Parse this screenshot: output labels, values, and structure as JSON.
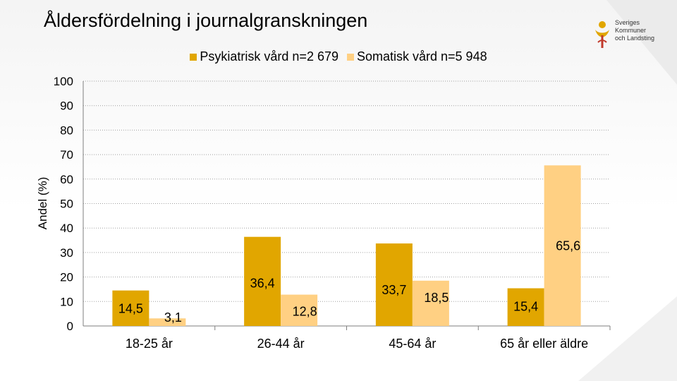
{
  "page": {
    "title": "Åldersfördelning i journalgranskningen",
    "logo_lines": [
      "Sveriges",
      "Kommuner",
      "och Landsting"
    ]
  },
  "colors": {
    "psych": "#e1a600",
    "somatic": "#ffd083",
    "grid": "#a0a0a0",
    "axis": "#7f7f7f"
  },
  "chart_data": {
    "type": "bar",
    "title": "Åldersfördelning i journalgranskningen",
    "xlabel": "",
    "ylabel": "Andel (%)",
    "ylim": [
      0,
      100
    ],
    "yticks": [
      0,
      10,
      20,
      30,
      40,
      50,
      60,
      70,
      80,
      90,
      100
    ],
    "grid": true,
    "legend": "top-center",
    "categories": [
      "18-25 år",
      "26-44 år",
      "45-64 år",
      "65 år eller äldre"
    ],
    "series": [
      {
        "name": "Psykiatrisk vård n=2 679",
        "values": [
          14.5,
          36.4,
          33.7,
          15.4
        ],
        "labels": [
          "14,5",
          "36,4",
          "33,7",
          "15,4"
        ]
      },
      {
        "name": "Somatisk vård n=5 948",
        "values": [
          3.1,
          12.8,
          18.5,
          65.6
        ],
        "labels": [
          "3,1",
          "12,8",
          "18,5",
          "65,6"
        ]
      }
    ]
  }
}
